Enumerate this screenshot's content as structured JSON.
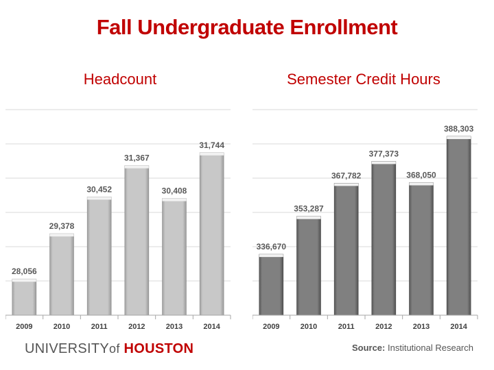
{
  "page": {
    "title": "Fall Undergraduate Enrollment",
    "logo_university": "UNIVERSITY",
    "logo_of": "of",
    "logo_houston": "HOUSTON",
    "source_label": "Source:",
    "source_text": "Institutional Research"
  },
  "colors": {
    "title_red": "#c00000",
    "bar_light": "#c8c8c8",
    "bar_dark": "#808080"
  },
  "chart_data": [
    {
      "type": "bar",
      "title": "Headcount",
      "categories": [
        "2009",
        "2010",
        "2011",
        "2012",
        "2013",
        "2014"
      ],
      "values": [
        28056,
        29378,
        30452,
        31367,
        30408,
        31744
      ],
      "value_labels": [
        "28,056",
        "29,378",
        "30,452",
        "31,367",
        "30,408",
        "31,744"
      ],
      "ylim": [
        27000,
        33000
      ],
      "grid": true,
      "bar_color": "#c8c8c8"
    },
    {
      "type": "bar",
      "title": "Semester Credit Hours",
      "categories": [
        "2009",
        "2010",
        "2011",
        "2012",
        "2013",
        "2014"
      ],
      "values": [
        336670,
        353287,
        367782,
        377373,
        368050,
        388303
      ],
      "value_labels": [
        "336,670",
        "353,287",
        "367,782",
        "377,373",
        "368,050",
        "388,303"
      ],
      "ylim": [
        310000,
        400000
      ],
      "grid": true,
      "bar_color": "#808080"
    }
  ]
}
